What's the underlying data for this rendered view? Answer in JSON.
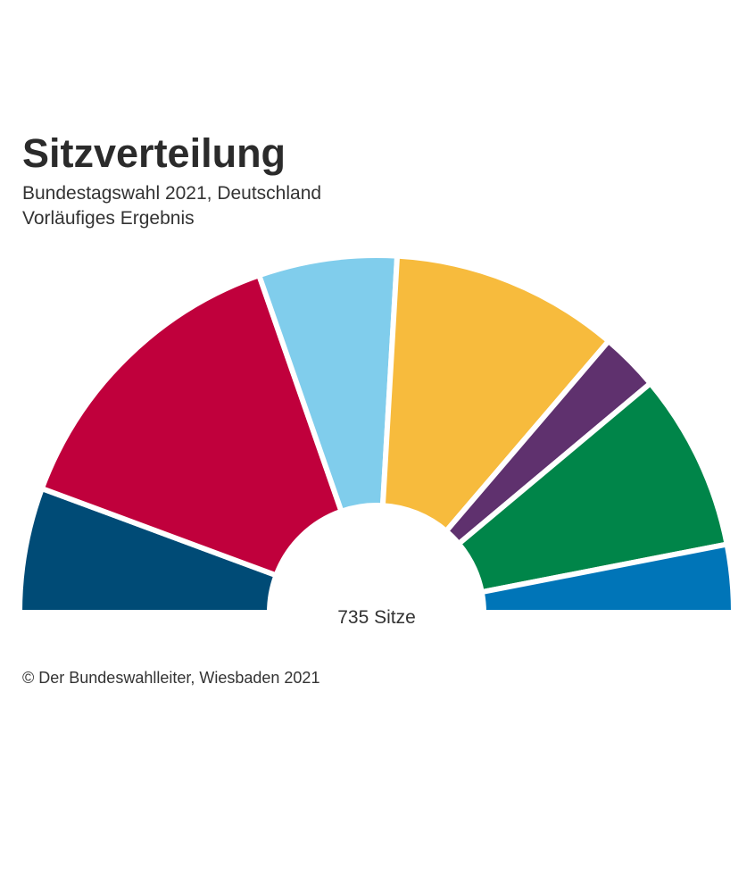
{
  "title": "Sitzverteilung",
  "subtitle_line1": "Bundestagswahl 2021, Deutschland",
  "subtitle_line2": "Vorläufiges Ergebnis",
  "center_label": "735 Sitze",
  "footer": "© Der Bundeswahlleiter, Wiesbaden 2021",
  "chart_data": {
    "type": "pie",
    "shape": "semicircle",
    "total": 735,
    "values": [
      83,
      206,
      92,
      152,
      39,
      118,
      45
    ],
    "colors": [
      "#004b76",
      "#c0003c",
      "#80cdec",
      "#f7bb3d",
      "#5f316e",
      "#008549",
      "#0075b8"
    ]
  }
}
